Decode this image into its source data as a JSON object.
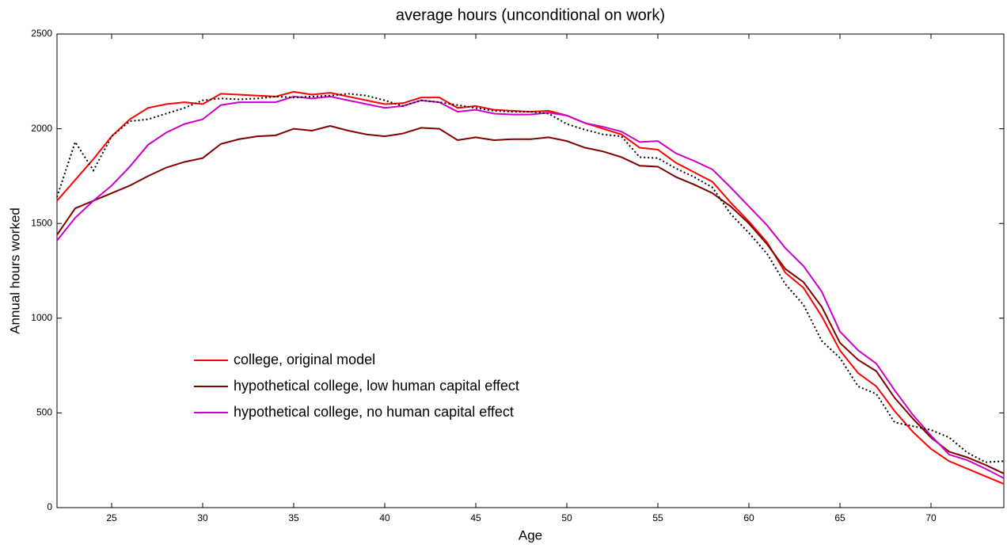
{
  "chart_data": {
    "type": "line",
    "title": "average hours (unconditional on work)",
    "xlabel": "Age",
    "ylabel": "Annual hours worked",
    "x": [
      22,
      23,
      24,
      25,
      26,
      27,
      28,
      29,
      30,
      31,
      32,
      33,
      34,
      35,
      36,
      37,
      38,
      39,
      40,
      41,
      42,
      43,
      44,
      45,
      46,
      47,
      48,
      49,
      50,
      51,
      52,
      53,
      54,
      55,
      56,
      57,
      58,
      59,
      60,
      61,
      62,
      63,
      64,
      65,
      66,
      67,
      68,
      69,
      70,
      71,
      72,
      73,
      74
    ],
    "series": [
      {
        "name": "college, original model",
        "color": "#ff0000",
        "dash": "solid",
        "values": [
          1620,
          1730,
          1840,
          1960,
          2050,
          2110,
          2130,
          2140,
          2130,
          2185,
          2180,
          2175,
          2170,
          2195,
          2180,
          2190,
          2170,
          2150,
          2130,
          2135,
          2165,
          2165,
          2110,
          2120,
          2100,
          2095,
          2090,
          2095,
          2070,
          2030,
          2000,
          1970,
          1900,
          1890,
          1820,
          1770,
          1720,
          1610,
          1510,
          1400,
          1240,
          1160,
          1010,
          830,
          710,
          640,
          510,
          400,
          310,
          245,
          205,
          165,
          125
        ]
      },
      {
        "name": "hypothetical college, low human capital effect",
        "color": "#800000",
        "dash": "solid",
        "values": [
          1440,
          1580,
          1620,
          1660,
          1700,
          1750,
          1795,
          1825,
          1845,
          1920,
          1945,
          1960,
          1965,
          2000,
          1990,
          2015,
          1990,
          1970,
          1960,
          1975,
          2005,
          2000,
          1940,
          1955,
          1940,
          1945,
          1945,
          1955,
          1935,
          1900,
          1880,
          1850,
          1805,
          1800,
          1745,
          1705,
          1660,
          1590,
          1500,
          1390,
          1260,
          1190,
          1060,
          870,
          780,
          720,
          580,
          470,
          370,
          295,
          265,
          225,
          180
        ]
      },
      {
        "name": "hypothetical college, no human capital effect",
        "color": "#cc00cc",
        "dash": "solid",
        "values": [
          1410,
          1530,
          1620,
          1700,
          1800,
          1915,
          1980,
          2025,
          2050,
          2125,
          2140,
          2140,
          2140,
          2170,
          2160,
          2170,
          2150,
          2130,
          2110,
          2120,
          2150,
          2140,
          2090,
          2100,
          2080,
          2075,
          2075,
          2085,
          2070,
          2030,
          2010,
          1985,
          1930,
          1935,
          1870,
          1830,
          1785,
          1690,
          1590,
          1490,
          1370,
          1275,
          1140,
          930,
          830,
          760,
          620,
          490,
          380,
          280,
          250,
          205,
          155
        ]
      },
      {
        "color": "#000000",
        "dash": "dotted",
        "values": [
          1640,
          1930,
          1780,
          1960,
          2040,
          2050,
          2080,
          2110,
          2150,
          2160,
          2155,
          2160,
          2170,
          2165,
          2170,
          2175,
          2185,
          2175,
          2150,
          2120,
          2150,
          2140,
          2125,
          2110,
          2095,
          2090,
          2090,
          2080,
          2025,
          1995,
          1970,
          1960,
          1850,
          1845,
          1790,
          1745,
          1690,
          1550,
          1450,
          1340,
          1180,
          1070,
          880,
          790,
          640,
          600,
          450,
          430,
          410,
          370,
          290,
          240,
          245
        ]
      }
    ],
    "xlim": [
      22,
      74
    ],
    "xticks": [
      25,
      30,
      35,
      40,
      45,
      50,
      55,
      60,
      65,
      70
    ],
    "ylim": [
      0,
      2500
    ],
    "yticks": [
      0,
      500,
      1000,
      1500,
      2000,
      2500
    ],
    "grid": false,
    "legend_loc": "lower left"
  }
}
